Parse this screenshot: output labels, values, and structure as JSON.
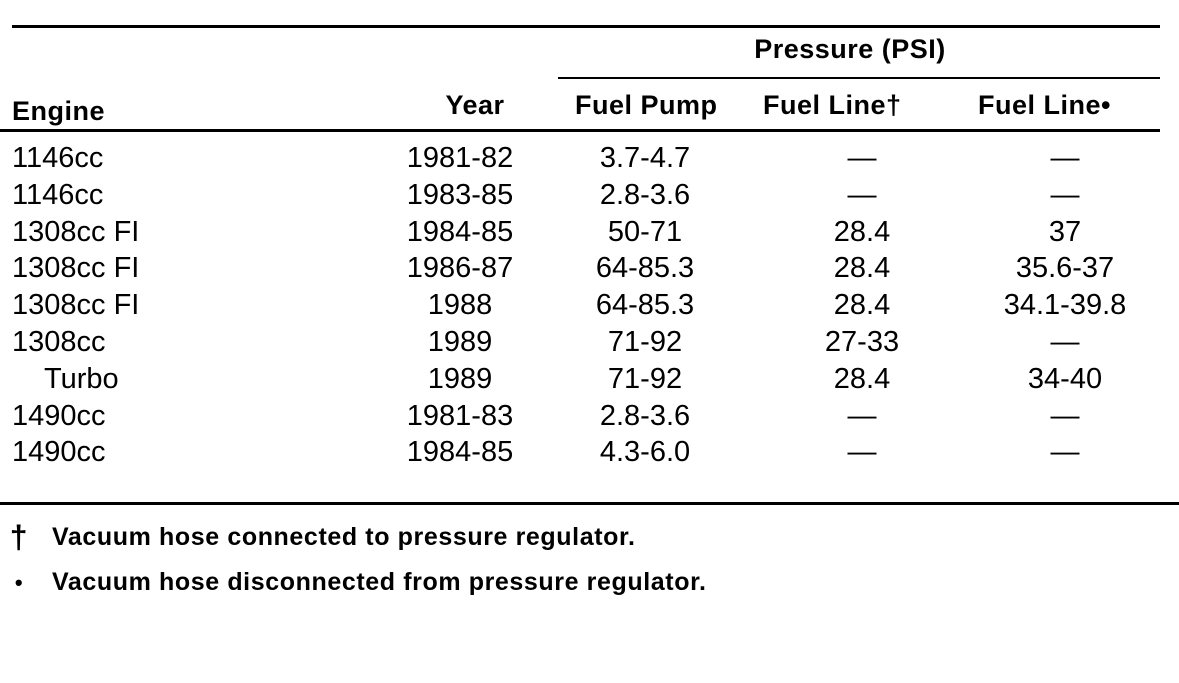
{
  "table": {
    "group_header": "Pressure (PSI)",
    "columns": {
      "engine": "Engine",
      "year": "Year",
      "fuel_pump": "Fuel Pump",
      "fuel_line_connected": "Fuel Line†",
      "fuel_line_disconnected": "Fuel Line•"
    },
    "rows": [
      {
        "engine": "1146cc",
        "year": "1981-82",
        "fuel_pump": "3.7-4.7",
        "fuel_line_connected": "—",
        "fuel_line_disconnected": "—"
      },
      {
        "engine": "1146cc",
        "year": "1983-85",
        "fuel_pump": "2.8-3.6",
        "fuel_line_connected": "—",
        "fuel_line_disconnected": "—"
      },
      {
        "engine": "1308cc FI",
        "year": "1984-85",
        "fuel_pump": "50-71",
        "fuel_line_connected": "28.4",
        "fuel_line_disconnected": "37"
      },
      {
        "engine": "1308cc FI",
        "year": "1986-87",
        "fuel_pump": "64-85.3",
        "fuel_line_connected": "28.4",
        "fuel_line_disconnected": "35.6-37"
      },
      {
        "engine": "1308cc FI",
        "year": "1988",
        "fuel_pump": "64-85.3",
        "fuel_line_connected": "28.4",
        "fuel_line_disconnected": "34.1-39.8"
      },
      {
        "engine": "1308cc",
        "year": "1989",
        "fuel_pump": "71-92",
        "fuel_line_connected": "27-33",
        "fuel_line_disconnected": "—"
      },
      {
        "engine": "Turbo",
        "year": "1989",
        "fuel_pump": "71-92",
        "fuel_line_connected": "28.4",
        "fuel_line_disconnected": "34-40"
      },
      {
        "engine": "1490cc",
        "year": "1981-83",
        "fuel_pump": "2.8-3.6",
        "fuel_line_connected": "—",
        "fuel_line_disconnected": "—"
      },
      {
        "engine": "1490cc",
        "year": "1984-85",
        "fuel_pump": "4.3-6.0",
        "fuel_line_connected": "—",
        "fuel_line_disconnected": "—"
      }
    ]
  },
  "footnotes": [
    {
      "symbol": "†",
      "text": "Vacuum hose connected to pressure regulator."
    },
    {
      "symbol": "•",
      "text": "Vacuum hose disconnected from pressure regulator."
    }
  ]
}
